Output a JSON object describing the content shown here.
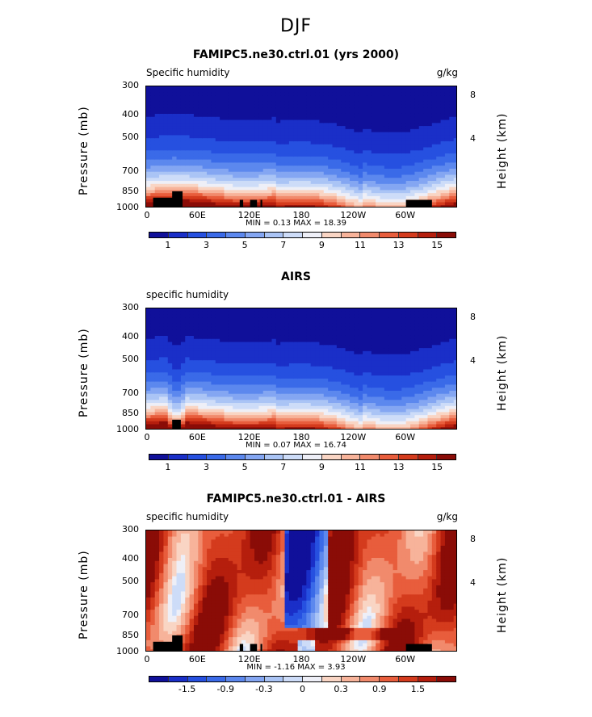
{
  "page_title": "DJF",
  "axis": {
    "ylabel": "Pressure (mb)",
    "zlabel": "Height (km)",
    "yticks": [
      "300",
      "400",
      "500",
      "700",
      "850",
      "1000"
    ],
    "ytick_values": [
      300,
      400,
      500,
      700,
      850,
      1000
    ],
    "zticks": [
      "8",
      "4"
    ],
    "zticks_nolow": [
      "8",
      "4"
    ],
    "xticks": [
      "0",
      "60E",
      "120E",
      "180",
      "120W",
      "60W"
    ],
    "xtick_values": [
      0,
      60,
      120,
      180,
      240,
      300
    ]
  },
  "palette": [
    "#10109a",
    "#1a2fc8",
    "#2650e0",
    "#3a6ae8",
    "#5c88ee",
    "#84a6f2",
    "#aac4f5",
    "#cddcf8",
    "#eeeff7",
    "#f9d5c4",
    "#f7b39a",
    "#f18a6c",
    "#e85d3c",
    "#d43b1d",
    "#b51e0d",
    "#8a0c07"
  ],
  "chart_data": [
    {
      "type": "heatmap",
      "title": "FAMIPC5.ne30.ctrl.01 (yrs 2000)",
      "variable": "Specific humidity",
      "units": "g/kg",
      "xlabel": "",
      "ylabel": "Pressure (mb)",
      "xlim": [
        0,
        360
      ],
      "ylim": [
        1000,
        300
      ],
      "min_label": "MIN =   0.13",
      "max_label": "MAX =  18.39",
      "min": 0.13,
      "max": 18.39,
      "colorbar_labels": [
        "1",
        "3",
        "5",
        "7",
        "9",
        "11",
        "13",
        "15"
      ],
      "colorbar_levels": [
        0,
        1,
        2,
        3,
        4,
        5,
        6,
        7,
        8,
        9,
        10,
        11,
        12,
        13,
        14,
        15,
        16
      ],
      "note": "zonal cross-section of specific humidity, highest near surface"
    },
    {
      "type": "heatmap",
      "title": "AIRS",
      "variable": "specific humidity",
      "units": "",
      "xlabel": "",
      "ylabel": "Pressure (mb)",
      "xlim": [
        0,
        360
      ],
      "ylim": [
        1000,
        300
      ],
      "min_label": "MIN =   0.07",
      "max_label": "MAX =  16.74",
      "min": 0.07,
      "max": 16.74,
      "colorbar_labels": [
        "1",
        "3",
        "5",
        "7",
        "9",
        "11",
        "13",
        "15"
      ],
      "colorbar_levels": [
        0,
        1,
        2,
        3,
        4,
        5,
        6,
        7,
        8,
        9,
        10,
        11,
        12,
        13,
        14,
        15,
        16
      ]
    },
    {
      "type": "heatmap",
      "title": "FAMIPC5.ne30.ctrl.01 - AIRS",
      "variable": "specific humidity",
      "units": "g/kg",
      "xlabel": "",
      "ylabel": "Pressure (mb)",
      "xlim": [
        0,
        360
      ],
      "ylim": [
        1000,
        300
      ],
      "min_label": "MIN =  -1.16",
      "max_label": "MAX =   3.93",
      "min": -1.16,
      "max": 3.93,
      "colorbar_labels": [
        "-1.5",
        "-0.9",
        "-0.3",
        "0",
        "0.3",
        "0.9",
        "1.5"
      ],
      "colorbar_levels": [
        -2.1,
        -1.8,
        -1.5,
        -1.2,
        -0.9,
        -0.6,
        -0.3,
        -0.1,
        0,
        0.1,
        0.3,
        0.6,
        0.9,
        1.2,
        1.5,
        1.8,
        2.1
      ]
    }
  ]
}
